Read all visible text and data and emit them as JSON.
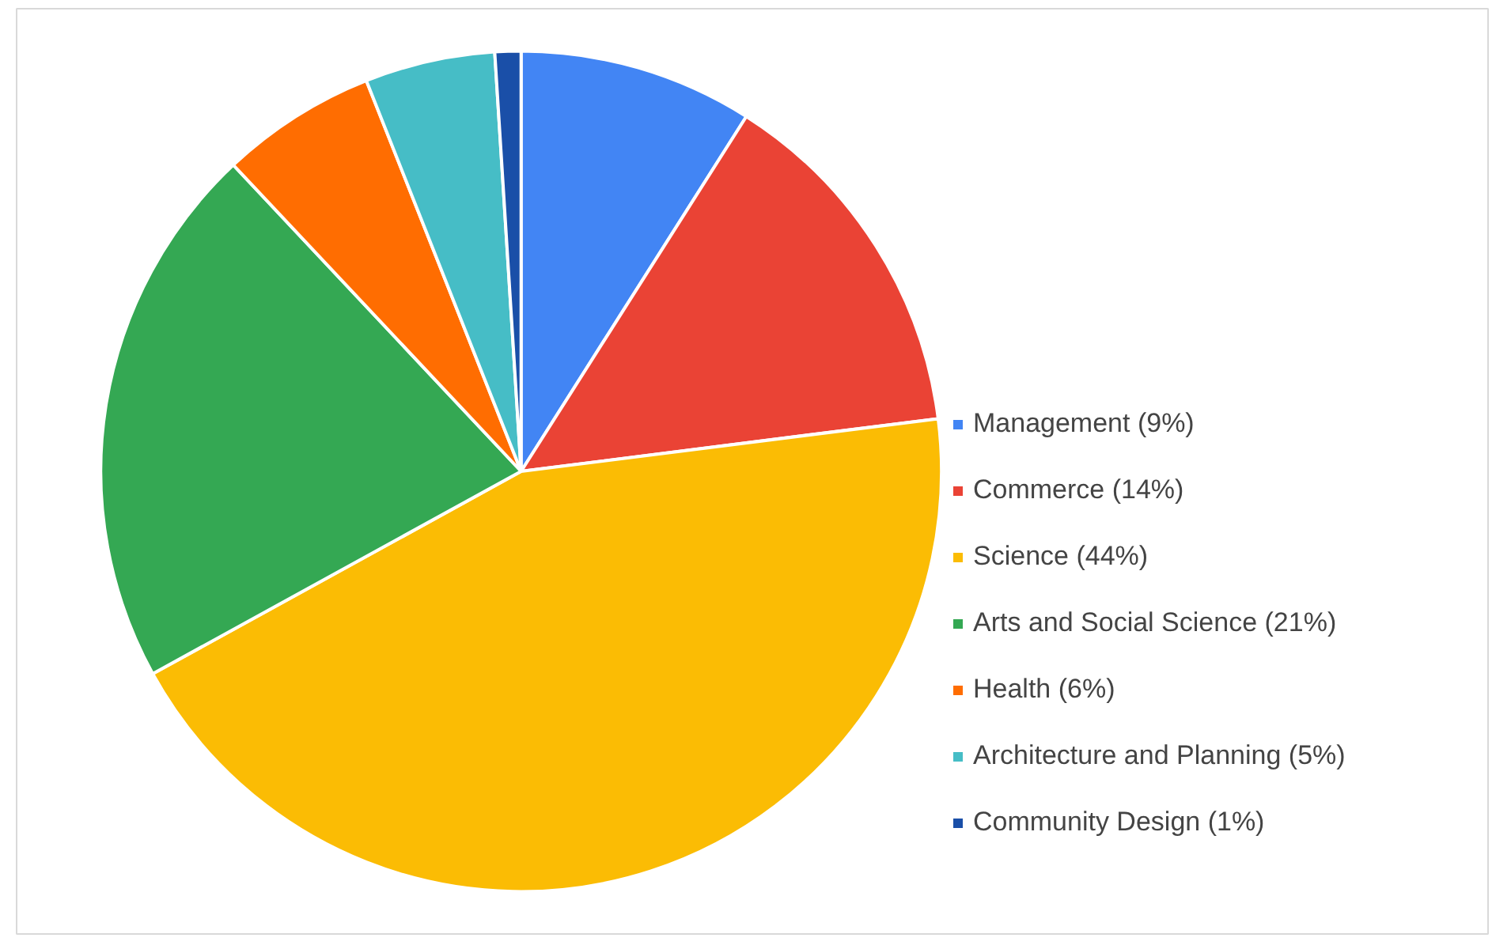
{
  "chart_data": {
    "type": "pie",
    "categories": [
      "Management (9%)",
      "Commerce (14%)",
      "Science (44%)",
      "Arts and Social Science (21%)",
      "Health (6%)",
      "Architecture and Planning (5%)",
      "Community Design (1%)"
    ],
    "values": [
      9,
      14,
      44,
      21,
      6,
      5,
      1
    ],
    "colors": [
      "#4285f4",
      "#ea4335",
      "#fbbc04",
      "#34a853",
      "#ff6d01",
      "#46bdc6",
      "#1a4fa8"
    ],
    "legend": "right"
  }
}
